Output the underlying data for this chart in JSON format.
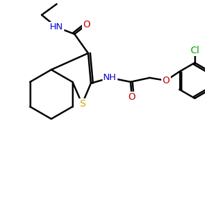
{
  "bg_color": "#ffffff",
  "atom_colors": {
    "C": "#000000",
    "N": "#0000cc",
    "O": "#cc0000",
    "S": "#ccaa00",
    "Cl": "#00aa00",
    "H": "#000000"
  },
  "bond_color": "#000000",
  "bond_width": 1.8,
  "figsize": [
    3.0,
    3.0
  ],
  "dpi": 100
}
